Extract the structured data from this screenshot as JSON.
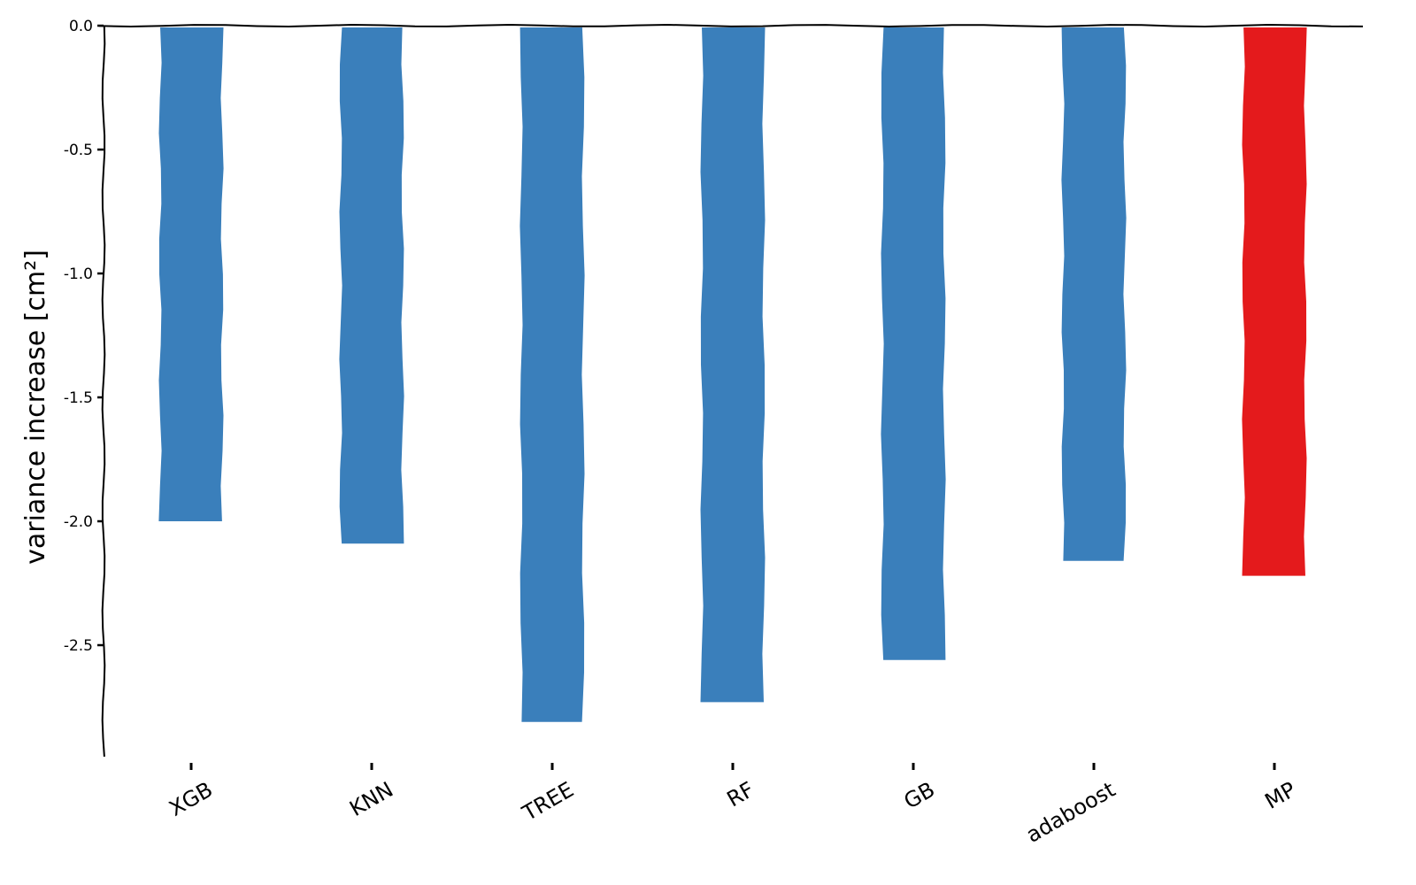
{
  "chart_data": {
    "type": "bar",
    "title": "",
    "xlabel": "",
    "ylabel": "variance increase [cm²]",
    "categories": [
      "XGB",
      "KNN",
      "TREE",
      "RF",
      "GB",
      "adaboost",
      "MP"
    ],
    "values": [
      -2.0,
      -2.09,
      -2.81,
      -2.73,
      -2.56,
      -2.16,
      -2.22
    ],
    "ylim": [
      -2.95,
      0.0
    ],
    "yticks": [
      0.0,
      -0.5,
      -1.0,
      -1.5,
      -2.0,
      -2.5
    ],
    "ytick_labels": [
      "0.0",
      "-0.5",
      "-1.0",
      "-1.5",
      "-2.0",
      "-2.5"
    ],
    "bar_colors": [
      "#3a7fbb",
      "#3a7fbb",
      "#3a7fbb",
      "#3a7fbb",
      "#3a7fbb",
      "#3a7fbb",
      "#e41a1c"
    ],
    "grid": false,
    "legend": "none"
  }
}
